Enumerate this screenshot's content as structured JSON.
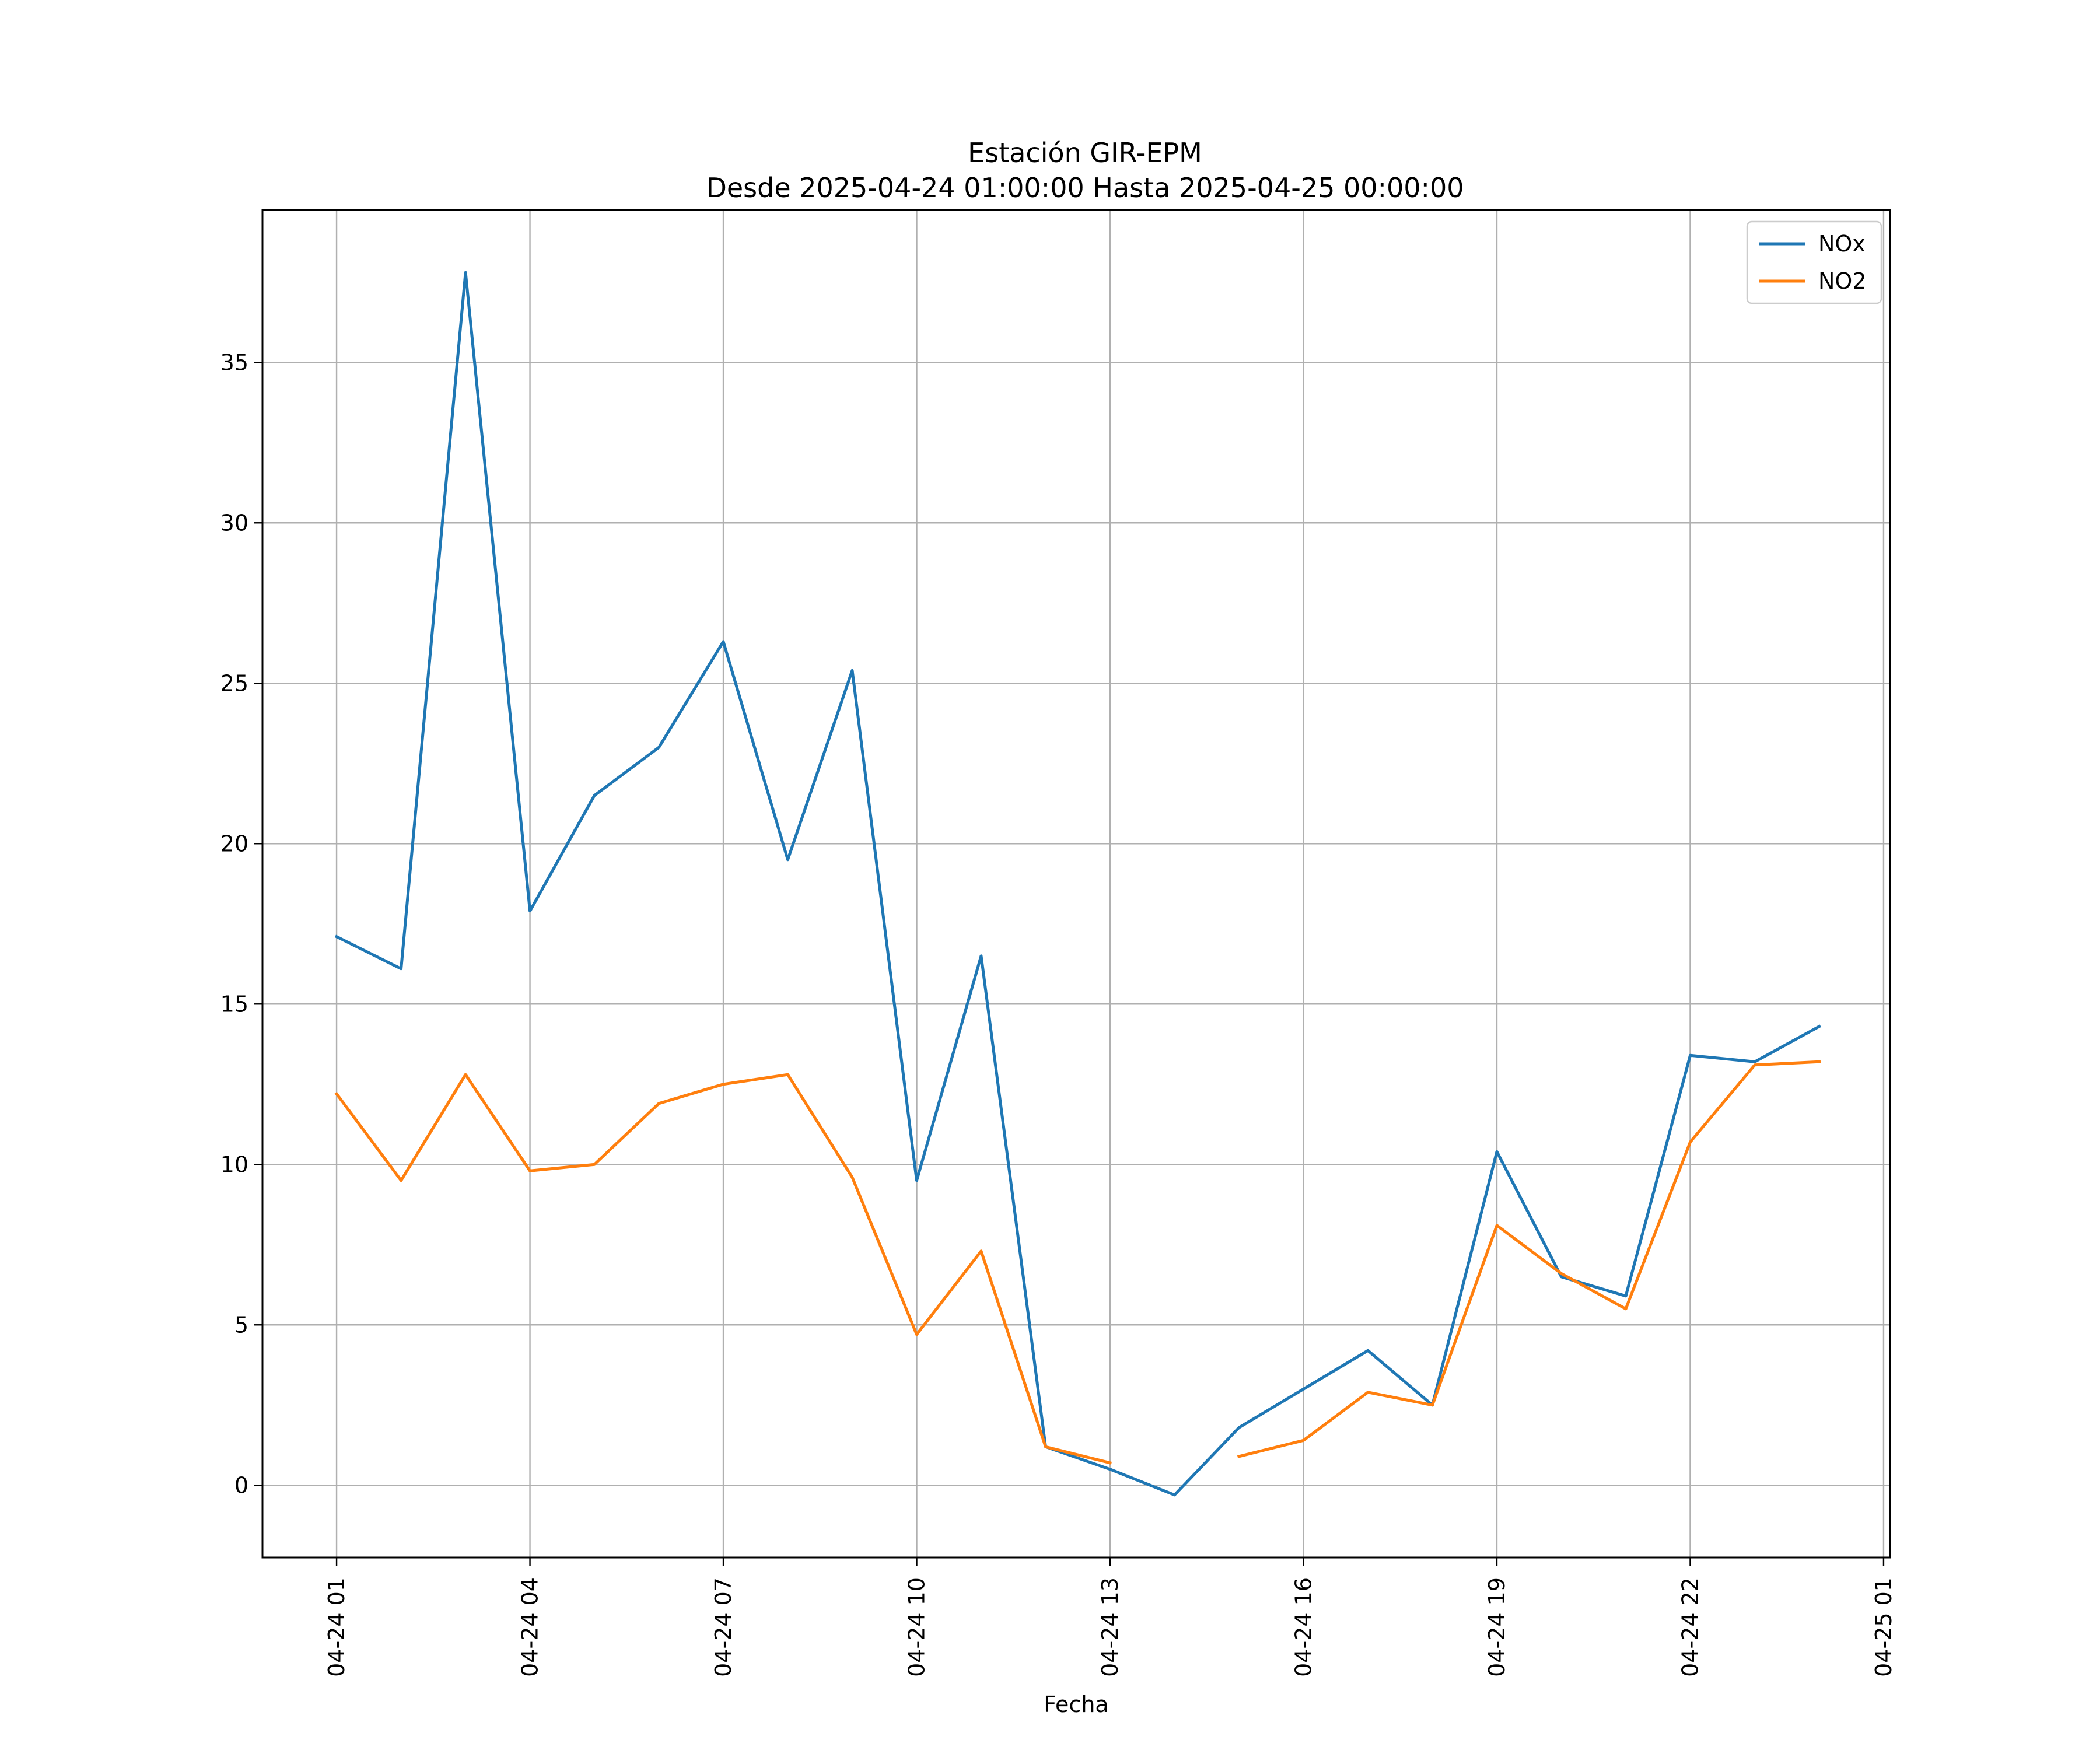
{
  "chart_data": {
    "type": "line",
    "title": "Estación GIR-EPM",
    "subtitle": "Desde 2025-04-24 01:00:00 Hasta 2025-04-25 00:00:00",
    "xlabel": "Fecha",
    "ylabel": "",
    "x": [
      "04-24 01",
      "04-24 02",
      "04-24 03",
      "04-24 04",
      "04-24 05",
      "04-24 06",
      "04-24 07",
      "04-24 08",
      "04-24 09",
      "04-24 10",
      "04-24 11",
      "04-24 12",
      "04-24 13",
      "04-24 14",
      "04-24 15",
      "04-24 16",
      "04-24 17",
      "04-24 18",
      "04-24 19",
      "04-24 20",
      "04-24 21",
      "04-24 22",
      "04-24 23",
      "04-25 00"
    ],
    "x_ticks": [
      "04-24 01",
      "04-24 04",
      "04-24 07",
      "04-24 10",
      "04-24 13",
      "04-24 16",
      "04-24 19",
      "04-24 22",
      "04-25 01"
    ],
    "y_ticks": [
      0,
      5,
      10,
      15,
      20,
      25,
      30,
      35
    ],
    "ylim": [
      -2.25,
      39.75
    ],
    "xlim": [
      "04-24 00:00",
      "04-25 01:00"
    ],
    "grid": true,
    "legend_position": "top-right",
    "series": [
      {
        "name": "NOx",
        "color": "#1f77b4",
        "values": [
          17.1,
          16.1,
          37.8,
          17.9,
          21.5,
          23.0,
          26.3,
          19.5,
          25.4,
          9.5,
          16.5,
          1.2,
          0.5,
          -0.3,
          1.8,
          3.0,
          4.2,
          2.5,
          10.4,
          6.5,
          5.9,
          13.4,
          13.2,
          14.3
        ]
      },
      {
        "name": "NO2",
        "color": "#ff7f0e",
        "values": [
          12.2,
          9.5,
          12.8,
          9.8,
          10.0,
          11.9,
          12.5,
          12.8,
          9.6,
          4.7,
          7.3,
          1.2,
          0.7,
          null,
          0.9,
          1.4,
          2.9,
          2.5,
          8.1,
          6.6,
          5.5,
          10.7,
          13.1,
          13.2
        ]
      }
    ]
  }
}
